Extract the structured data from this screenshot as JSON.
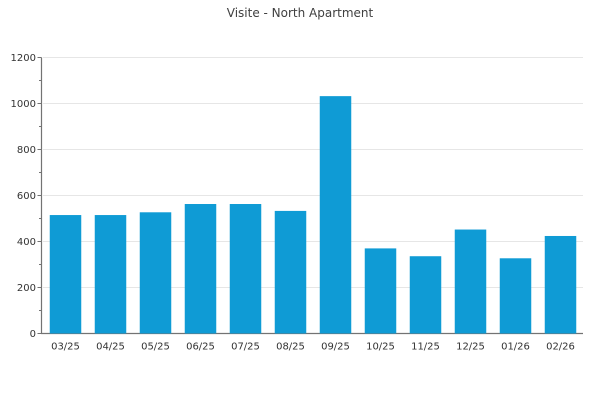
{
  "chart_data": {
    "type": "bar",
    "title": "Visite - North Apartment",
    "xlabel": "",
    "ylabel": "",
    "categories": [
      "03/25",
      "04/25",
      "05/25",
      "06/25",
      "07/25",
      "08/25",
      "09/25",
      "10/25",
      "11/25",
      "12/25",
      "01/26",
      "02/26"
    ],
    "values": [
      515,
      515,
      527,
      563,
      563,
      533,
      1032,
      370,
      336,
      452,
      327,
      424
    ],
    "ylim": [
      0,
      1200
    ],
    "yticks": [
      0,
      200,
      400,
      600,
      800,
      1000,
      1200
    ],
    "minor_yticks": [
      100,
      300,
      500,
      700,
      900,
      1100
    ],
    "grid": "horizontal-major",
    "legend": "none",
    "colors": {
      "bar": "#0f9bd5",
      "grid": "#e6e6e6",
      "axis": "#737373",
      "tick_label": "#333333",
      "title": "#404040"
    }
  }
}
